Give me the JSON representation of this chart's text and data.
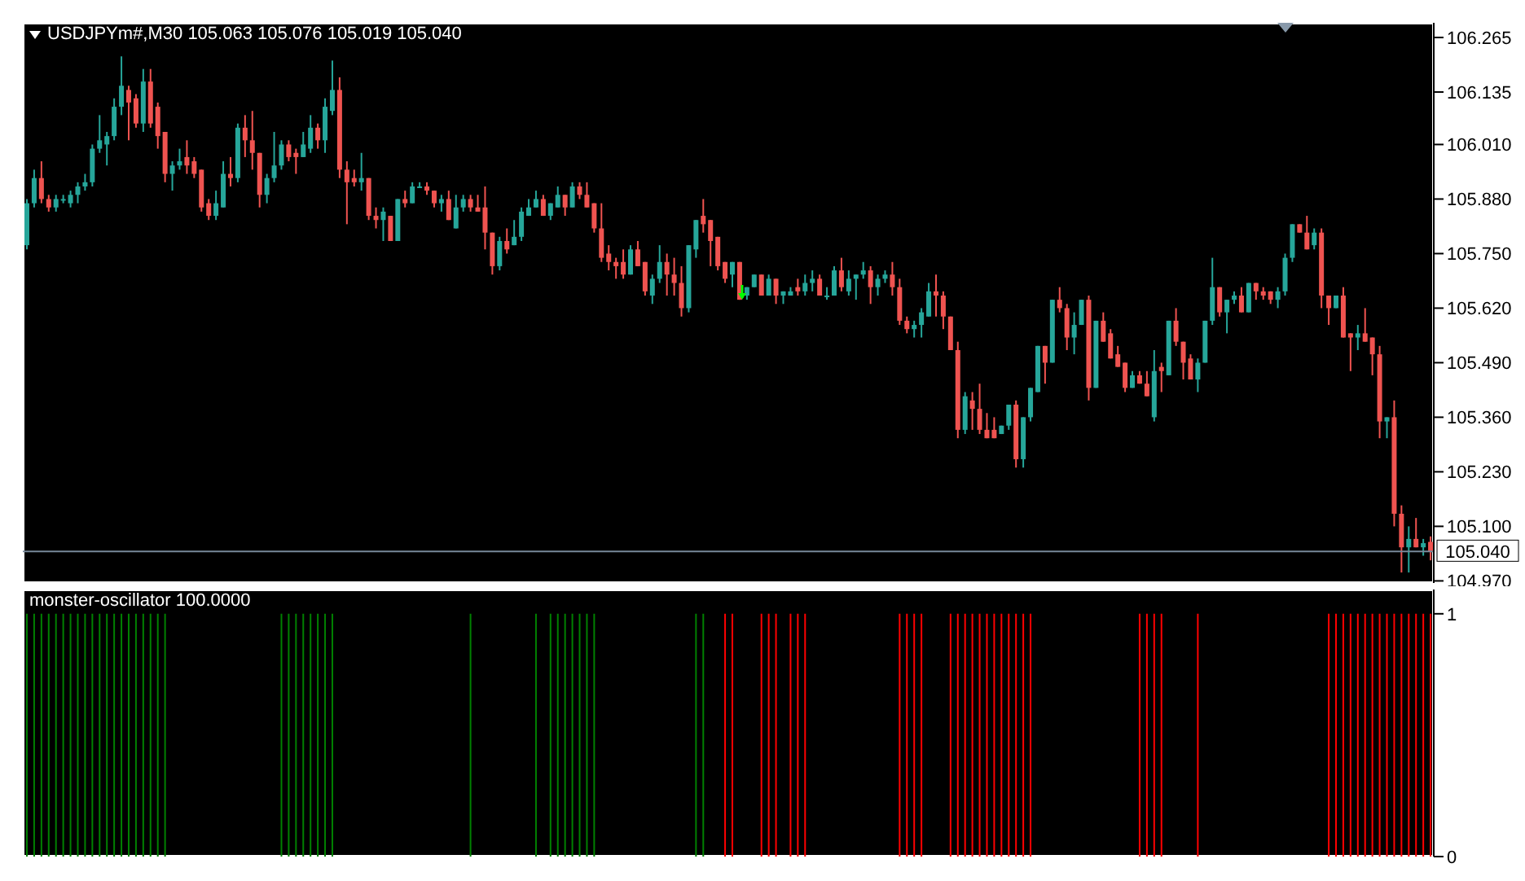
{
  "chart_data": [
    {
      "type": "candlestick",
      "title": "USDJPYm#,M30 105.063 105.076 105.019 105.040",
      "categories": [
        null,
        null,
        null,
        null,
        null,
        null,
        null,
        null,
        null,
        null,
        null,
        null,
        null,
        null,
        null,
        null,
        null,
        null,
        null,
        null,
        null,
        null,
        null,
        null,
        null,
        null,
        null,
        null,
        null,
        null,
        null,
        null,
        null,
        null,
        null,
        null,
        null,
        null,
        null,
        null,
        null,
        null,
        null,
        null,
        null,
        null,
        null,
        null,
        null,
        null,
        null,
        null,
        null,
        null,
        null,
        null,
        null,
        null,
        null,
        null,
        null,
        null,
        null,
        null,
        null,
        null,
        null,
        null,
        null,
        null,
        null,
        null,
        null,
        null,
        null,
        null,
        null,
        null,
        null,
        null,
        null,
        null,
        null,
        null,
        null,
        null,
        null,
        null,
        null,
        null,
        null,
        null,
        null,
        null,
        null,
        null,
        null,
        null,
        null,
        null,
        null,
        null,
        null,
        null,
        null,
        null,
        null,
        null,
        null,
        null,
        null,
        null,
        null,
        null,
        null,
        null,
        null,
        null,
        null,
        null,
        null,
        null,
        null,
        null,
        null,
        null,
        null,
        null,
        null,
        null,
        null,
        null,
        null,
        null,
        null,
        null,
        null,
        null,
        null,
        null,
        null,
        null,
        null,
        null,
        null,
        null,
        null,
        null,
        null,
        null,
        null,
        null,
        null,
        null,
        null,
        null,
        null,
        null,
        null,
        null,
        null,
        null,
        null,
        null,
        null,
        null,
        null,
        null,
        null,
        null,
        null,
        null,
        null,
        null,
        null,
        null,
        null,
        null,
        null,
        null,
        null,
        null,
        null,
        null,
        null,
        null,
        null,
        null,
        null,
        null,
        null,
        null,
        null,
        null
      ],
      "ohlc": [
        [
          105.77,
          105.88,
          105.76,
          105.87
        ],
        [
          105.87,
          105.95,
          105.86,
          105.93
        ],
        [
          105.93,
          105.97,
          105.87,
          105.88
        ],
        [
          105.88,
          105.89,
          105.85,
          105.86
        ],
        [
          105.86,
          105.89,
          105.85,
          105.88
        ],
        [
          105.88,
          105.89,
          105.87,
          105.88
        ],
        [
          105.87,
          105.9,
          105.86,
          105.89
        ],
        [
          105.89,
          105.92,
          105.87,
          105.91
        ],
        [
          105.91,
          105.94,
          105.9,
          105.92
        ],
        [
          105.92,
          106.01,
          105.91,
          106.0
        ],
        [
          106.0,
          106.08,
          105.99,
          106.02
        ],
        [
          106.01,
          106.04,
          105.96,
          106.03
        ],
        [
          106.03,
          106.12,
          106.02,
          106.1
        ],
        [
          106.1,
          106.22,
          106.08,
          106.15
        ],
        [
          106.14,
          106.15,
          106.02,
          106.11
        ],
        [
          106.12,
          106.13,
          106.05,
          106.06
        ],
        [
          106.06,
          106.19,
          106.04,
          106.16
        ],
        [
          106.16,
          106.19,
          106.05,
          106.06
        ],
        [
          106.1,
          106.11,
          106.0,
          106.03
        ],
        [
          106.04,
          106.04,
          105.92,
          105.94
        ],
        [
          105.94,
          105.97,
          105.9,
          105.96
        ],
        [
          105.96,
          106.0,
          105.95,
          105.97
        ],
        [
          105.98,
          106.02,
          105.94,
          105.96
        ],
        [
          105.97,
          105.98,
          105.93,
          105.94
        ],
        [
          105.95,
          105.95,
          105.85,
          105.86
        ],
        [
          105.87,
          105.88,
          105.83,
          105.84
        ],
        [
          105.84,
          105.9,
          105.83,
          105.87
        ],
        [
          105.86,
          105.97,
          105.86,
          105.94
        ],
        [
          105.94,
          105.98,
          105.91,
          105.93
        ],
        [
          105.93,
          106.06,
          105.92,
          106.05
        ],
        [
          106.05,
          106.08,
          105.98,
          106.02
        ],
        [
          106.02,
          106.09,
          105.95,
          105.99
        ],
        [
          105.99,
          105.99,
          105.86,
          105.89
        ],
        [
          105.89,
          105.94,
          105.87,
          105.93
        ],
        [
          105.93,
          106.04,
          105.92,
          105.96
        ],
        [
          105.96,
          106.02,
          105.95,
          106.01
        ],
        [
          106.01,
          106.02,
          105.97,
          105.98
        ],
        [
          105.99,
          106.0,
          105.94,
          105.98
        ],
        [
          105.98,
          106.04,
          105.98,
          106.01
        ],
        [
          106.0,
          106.08,
          105.99,
          106.05
        ],
        [
          106.05,
          106.06,
          106.0,
          106.02
        ],
        [
          106.02,
          106.12,
          105.99,
          106.1
        ],
        [
          106.09,
          106.21,
          106.08,
          106.14
        ],
        [
          106.14,
          106.17,
          105.93,
          105.95
        ],
        [
          105.95,
          105.97,
          105.82,
          105.92
        ],
        [
          105.93,
          105.95,
          105.91,
          105.92
        ],
        [
          105.92,
          105.99,
          105.9,
          105.93
        ],
        [
          105.93,
          105.93,
          105.83,
          105.84
        ],
        [
          105.84,
          105.86,
          105.81,
          105.83
        ],
        [
          105.83,
          105.86,
          105.78,
          105.85
        ],
        [
          105.84,
          105.84,
          105.78,
          105.78
        ],
        [
          105.78,
          105.88,
          105.78,
          105.88
        ],
        [
          105.88,
          105.9,
          105.86,
          105.87
        ],
        [
          105.87,
          105.92,
          105.87,
          105.91
        ],
        [
          105.91,
          105.92,
          105.91,
          105.91
        ],
        [
          105.91,
          105.92,
          105.89,
          105.9
        ],
        [
          105.9,
          105.9,
          105.86,
          105.87
        ],
        [
          105.87,
          105.89,
          105.85,
          105.88
        ],
        [
          105.88,
          105.9,
          105.83,
          105.83
        ],
        [
          105.81,
          105.89,
          105.81,
          105.86
        ],
        [
          105.86,
          105.89,
          105.85,
          105.88
        ],
        [
          105.88,
          105.89,
          105.85,
          105.86
        ],
        [
          105.86,
          105.89,
          105.85,
          105.85
        ],
        [
          105.86,
          105.91,
          105.76,
          105.8
        ],
        [
          105.8,
          105.8,
          105.7,
          105.72
        ],
        [
          105.72,
          105.79,
          105.71,
          105.78
        ],
        [
          105.78,
          105.81,
          105.75,
          105.76
        ],
        [
          105.77,
          105.83,
          105.77,
          105.79
        ],
        [
          105.79,
          105.86,
          105.78,
          105.85
        ],
        [
          105.84,
          105.88,
          105.84,
          105.86
        ],
        [
          105.86,
          105.9,
          105.86,
          105.88
        ],
        [
          105.88,
          105.89,
          105.84,
          105.84
        ],
        [
          105.84,
          105.87,
          105.83,
          105.87
        ],
        [
          105.86,
          105.91,
          105.86,
          105.89
        ],
        [
          105.89,
          105.89,
          105.84,
          105.86
        ],
        [
          105.86,
          105.92,
          105.86,
          105.91
        ],
        [
          105.91,
          105.92,
          105.88,
          105.89
        ],
        [
          105.89,
          105.92,
          105.86,
          105.86
        ],
        [
          105.87,
          105.87,
          105.8,
          105.81
        ],
        [
          105.81,
          105.87,
          105.73,
          105.74
        ],
        [
          105.75,
          105.77,
          105.71,
          105.73
        ],
        [
          105.73,
          105.74,
          105.69,
          105.72
        ],
        [
          105.73,
          105.76,
          105.69,
          105.7
        ],
        [
          105.7,
          105.77,
          105.7,
          105.76
        ],
        [
          105.76,
          105.78,
          105.72,
          105.72
        ],
        [
          105.73,
          105.73,
          105.65,
          105.66
        ],
        [
          105.65,
          105.7,
          105.63,
          105.69
        ],
        [
          105.69,
          105.77,
          105.68,
          105.73
        ],
        [
          105.73,
          105.75,
          105.65,
          105.7
        ],
        [
          105.7,
          105.74,
          105.65,
          105.68
        ],
        [
          105.68,
          105.72,
          105.6,
          105.62
        ],
        [
          105.62,
          105.77,
          105.61,
          105.77
        ],
        [
          105.76,
          105.83,
          105.74,
          105.83
        ],
        [
          105.84,
          105.88,
          105.8,
          105.82
        ],
        [
          105.83,
          105.83,
          105.72,
          105.78
        ],
        [
          105.79,
          105.79,
          105.71,
          105.72
        ],
        [
          105.73,
          105.73,
          105.68,
          105.69
        ],
        [
          105.7,
          105.73,
          105.67,
          105.73
        ],
        [
          105.73,
          105.73,
          105.64,
          105.64
        ],
        [
          105.65,
          105.67,
          105.64,
          105.67
        ],
        [
          105.67,
          105.7,
          105.67,
          105.7
        ],
        [
          105.7,
          105.7,
          105.65,
          105.65
        ],
        [
          105.65,
          105.7,
          105.65,
          105.69
        ],
        [
          105.69,
          105.69,
          105.63,
          105.65
        ],
        [
          105.65,
          105.66,
          105.63,
          105.66
        ],
        [
          105.65,
          105.67,
          105.65,
          105.66
        ],
        [
          105.67,
          105.69,
          105.65,
          105.66
        ],
        [
          105.66,
          105.7,
          105.65,
          105.68
        ],
        [
          105.68,
          105.71,
          105.66,
          105.69
        ],
        [
          105.69,
          105.7,
          105.65,
          105.65
        ],
        [
          105.65,
          105.67,
          105.64,
          105.65
        ],
        [
          105.65,
          105.72,
          105.65,
          105.71
        ],
        [
          105.71,
          105.74,
          105.66,
          105.67
        ],
        [
          105.66,
          105.71,
          105.65,
          105.69
        ],
        [
          105.69,
          105.7,
          105.64,
          105.7
        ],
        [
          105.7,
          105.73,
          105.69,
          105.71
        ],
        [
          105.71,
          105.72,
          105.63,
          105.67
        ],
        [
          105.67,
          105.7,
          105.65,
          105.69
        ],
        [
          105.69,
          105.71,
          105.68,
          105.7
        ],
        [
          105.7,
          105.73,
          105.65,
          105.67
        ],
        [
          105.67,
          105.69,
          105.58,
          105.59
        ],
        [
          105.59,
          105.6,
          105.56,
          105.57
        ],
        [
          105.57,
          105.59,
          105.55,
          105.58
        ],
        [
          105.58,
          105.62,
          105.55,
          105.61
        ],
        [
          105.6,
          105.68,
          105.6,
          105.66
        ],
        [
          105.66,
          105.7,
          105.6,
          105.65
        ],
        [
          105.65,
          105.66,
          105.57,
          105.6
        ],
        [
          105.6,
          105.6,
          105.52,
          105.52
        ],
        [
          105.52,
          105.54,
          105.31,
          105.33
        ],
        [
          105.33,
          105.42,
          105.32,
          105.41
        ],
        [
          105.4,
          105.42,
          105.33,
          105.38
        ],
        [
          105.38,
          105.44,
          105.32,
          105.33
        ],
        [
          105.33,
          105.37,
          105.31,
          105.31
        ],
        [
          105.33,
          105.36,
          105.31,
          105.31
        ],
        [
          105.32,
          105.34,
          105.32,
          105.34
        ],
        [
          105.34,
          105.39,
          105.33,
          105.39
        ],
        [
          105.39,
          105.4,
          105.24,
          105.26
        ],
        [
          105.26,
          105.36,
          105.24,
          105.36
        ],
        [
          105.36,
          105.43,
          105.35,
          105.43
        ],
        [
          105.42,
          105.53,
          105.42,
          105.53
        ],
        [
          105.53,
          105.53,
          105.44,
          105.49
        ],
        [
          105.49,
          105.64,
          105.49,
          105.64
        ],
        [
          105.64,
          105.67,
          105.61,
          105.62
        ],
        [
          105.62,
          105.63,
          105.52,
          105.55
        ],
        [
          105.55,
          105.61,
          105.51,
          105.58
        ],
        [
          105.58,
          105.64,
          105.58,
          105.64
        ],
        [
          105.64,
          105.65,
          105.4,
          105.43
        ],
        [
          105.43,
          105.59,
          105.43,
          105.59
        ],
        [
          105.59,
          105.61,
          105.54,
          105.54
        ],
        [
          105.56,
          105.57,
          105.5,
          105.5
        ],
        [
          105.51,
          105.53,
          105.48,
          105.48
        ],
        [
          105.49,
          105.49,
          105.42,
          105.43
        ],
        [
          105.43,
          105.47,
          105.43,
          105.46
        ],
        [
          105.46,
          105.47,
          105.44,
          105.44
        ],
        [
          105.44,
          105.47,
          105.41,
          105.41
        ],
        [
          105.36,
          105.52,
          105.35,
          105.47
        ],
        [
          105.48,
          105.49,
          105.42,
          105.47
        ],
        [
          105.46,
          105.59,
          105.46,
          105.59
        ],
        [
          105.59,
          105.62,
          105.53,
          105.54
        ],
        [
          105.54,
          105.54,
          105.45,
          105.49
        ],
        [
          105.5,
          105.51,
          105.45,
          105.45
        ],
        [
          105.45,
          105.5,
          105.42,
          105.49
        ],
        [
          105.49,
          105.59,
          105.49,
          105.59
        ],
        [
          105.59,
          105.74,
          105.58,
          105.67
        ],
        [
          105.67,
          105.67,
          105.6,
          105.61
        ],
        [
          105.61,
          105.64,
          105.56,
          105.64
        ],
        [
          105.64,
          105.66,
          105.63,
          105.65
        ],
        [
          105.65,
          105.67,
          105.61,
          105.61
        ],
        [
          105.61,
          105.68,
          105.61,
          105.68
        ],
        [
          105.68,
          105.68,
          105.64,
          105.66
        ],
        [
          105.66,
          105.67,
          105.64,
          105.65
        ],
        [
          105.66,
          105.66,
          105.63,
          105.64
        ],
        [
          105.64,
          105.67,
          105.62,
          105.66
        ],
        [
          105.66,
          105.75,
          105.65,
          105.74
        ],
        [
          105.74,
          105.82,
          105.73,
          105.82
        ],
        [
          105.82,
          105.82,
          105.8,
          105.8
        ],
        [
          105.8,
          105.84,
          105.76,
          105.76
        ],
        [
          105.77,
          105.81,
          105.76,
          105.8
        ],
        [
          105.8,
          105.81,
          105.62,
          105.65
        ],
        [
          105.65,
          105.65,
          105.58,
          105.62
        ],
        [
          105.62,
          105.65,
          105.62,
          105.65
        ],
        [
          105.65,
          105.67,
          105.55,
          105.55
        ],
        [
          105.56,
          105.56,
          105.47,
          105.55
        ],
        [
          105.55,
          105.58,
          105.52,
          105.56
        ],
        [
          105.56,
          105.62,
          105.54,
          105.54
        ],
        [
          105.55,
          105.55,
          105.46,
          105.51
        ],
        [
          105.51,
          105.53,
          105.31,
          105.35
        ],
        [
          105.35,
          105.36,
          105.31,
          105.36
        ],
        [
          105.36,
          105.4,
          105.1,
          105.13
        ],
        [
          105.13,
          105.15,
          104.99,
          105.05
        ],
        [
          105.05,
          105.1,
          104.99,
          105.07
        ],
        [
          105.07,
          105.12,
          105.05,
          105.05
        ],
        [
          105.05,
          105.07,
          105.03,
          105.06
        ],
        [
          105.063,
          105.076,
          105.019,
          105.04
        ]
      ],
      "ylim": [
        104.965,
        106.3
      ],
      "yticks": [
        106.265,
        106.135,
        {
          "value": 106.01,
          "label": "106.010"
        },
        {
          "value": 105.88,
          "label": "105.880"
        },
        {
          "value": 105.75,
          "label": "105.750"
        },
        {
          "value": 105.62,
          "label": "105.620"
        },
        {
          "value": 105.49,
          "label": "105.490"
        },
        {
          "value": 105.36,
          "label": "105.360"
        },
        {
          "value": 105.23,
          "label": "105.230"
        },
        {
          "value": 105.1,
          "label": "105.100"
        },
        {
          "value": 104.97,
          "label": "104.970"
        }
      ],
      "ref_lines": [
        {
          "axis": "y",
          "value": 105.04,
          "label": "105.040",
          "color": "#778899"
        }
      ],
      "tick_labels": "y"
    },
    {
      "type": "bar",
      "title": "monster-oscillator 100.0000",
      "categories": [
        null,
        null,
        null,
        null,
        null,
        null,
        null,
        null,
        null,
        null,
        null,
        null,
        null,
        null,
        null,
        null,
        null,
        null,
        null,
        null,
        null,
        null,
        null,
        null,
        null,
        null,
        null,
        null,
        null,
        null,
        null,
        null,
        null,
        null,
        null,
        null,
        null,
        null,
        null,
        null,
        null,
        null,
        null,
        null,
        null,
        null,
        null,
        null,
        null,
        null,
        null,
        null,
        null,
        null,
        null,
        null,
        null,
        null,
        null,
        null,
        null,
        null,
        null,
        null,
        null,
        null,
        null,
        null,
        null,
        null,
        null,
        null,
        null,
        null,
        null,
        null,
        null,
        null,
        null,
        null,
        null,
        null,
        null,
        null,
        null,
        null,
        null,
        null,
        null,
        null,
        null,
        null,
        null,
        null,
        null,
        null,
        null,
        null,
        null,
        null,
        null,
        null,
        null,
        null,
        null,
        null,
        null,
        null,
        null,
        null,
        null,
        null,
        null,
        null,
        null,
        null,
        null,
        null,
        null,
        null,
        null,
        null,
        null,
        null,
        null,
        null,
        null,
        null,
        null,
        null,
        null,
        null,
        null,
        null,
        null,
        null,
        null,
        null,
        null,
        null,
        null,
        null,
        null,
        null,
        null,
        null,
        null,
        null,
        null,
        null,
        null,
        null,
        null,
        null,
        null,
        null,
        null,
        null,
        null,
        null,
        null,
        null,
        null,
        null,
        null,
        null,
        null,
        null,
        null,
        null,
        null,
        null,
        null,
        null,
        null,
        null,
        null,
        null,
        null,
        null,
        null,
        null,
        null,
        null,
        null,
        null,
        null,
        null,
        null,
        null,
        null,
        null,
        null,
        null
      ],
      "series": [
        {
          "color": "#008000",
          "values": [
            1,
            1,
            1,
            1,
            1,
            1,
            1,
            1,
            1,
            1,
            1,
            1,
            1,
            1,
            1,
            1,
            1,
            1,
            1,
            1,
            null,
            null,
            null,
            null,
            null,
            null,
            null,
            null,
            null,
            null,
            null,
            null,
            null,
            null,
            null,
            1,
            1,
            1,
            1,
            1,
            1,
            1,
            1,
            null,
            null,
            null,
            null,
            null,
            null,
            null,
            null,
            null,
            null,
            null,
            null,
            null,
            null,
            null,
            null,
            null,
            null,
            1,
            null,
            null,
            null,
            null,
            null,
            null,
            null,
            null,
            1,
            null,
            1,
            1,
            1,
            1,
            1,
            1,
            1,
            null,
            null,
            null,
            null,
            null,
            null,
            null,
            null,
            null,
            null,
            null,
            null,
            null,
            1,
            1,
            null,
            null,
            null,
            null,
            null,
            null,
            null,
            null,
            null,
            null,
            null,
            null,
            null,
            null,
            null,
            null,
            null,
            null,
            null,
            null,
            null,
            null,
            null,
            null,
            null,
            null,
            null,
            null,
            null,
            null,
            null,
            null,
            null,
            null,
            null,
            null,
            null,
            null,
            null,
            null,
            null,
            null,
            null,
            null,
            null,
            null,
            null,
            null,
            null,
            null,
            null,
            null,
            null,
            null,
            null,
            null,
            null,
            null,
            null,
            null,
            null,
            null,
            null,
            null,
            null,
            null,
            null,
            null,
            null,
            null,
            null,
            null,
            null,
            null,
            null,
            null,
            null,
            null,
            null,
            null,
            null,
            null,
            null,
            null,
            null,
            null,
            null,
            null,
            null,
            null,
            null,
            null,
            null,
            null,
            null,
            null,
            null,
            null,
            null,
            null
          ]
        },
        {
          "color": "#ff0000",
          "values": [
            null,
            null,
            null,
            null,
            null,
            null,
            null,
            null,
            null,
            null,
            null,
            null,
            null,
            null,
            null,
            null,
            null,
            null,
            null,
            null,
            null,
            null,
            null,
            null,
            null,
            null,
            null,
            null,
            null,
            null,
            null,
            null,
            null,
            null,
            null,
            null,
            null,
            null,
            null,
            null,
            null,
            null,
            null,
            null,
            null,
            null,
            null,
            null,
            null,
            null,
            null,
            null,
            null,
            null,
            null,
            null,
            null,
            null,
            null,
            null,
            null,
            null,
            null,
            null,
            null,
            null,
            null,
            null,
            null,
            null,
            null,
            null,
            null,
            null,
            null,
            null,
            null,
            null,
            null,
            null,
            null,
            null,
            null,
            null,
            null,
            null,
            null,
            null,
            null,
            null,
            null,
            null,
            null,
            null,
            null,
            null,
            1,
            1,
            null,
            null,
            null,
            1,
            1,
            1,
            null,
            1,
            1,
            1,
            null,
            null,
            null,
            null,
            null,
            null,
            null,
            null,
            null,
            null,
            null,
            null,
            1,
            1,
            1,
            1,
            null,
            null,
            null,
            1,
            1,
            1,
            1,
            1,
            1,
            1,
            1,
            1,
            1,
            1,
            1,
            null,
            null,
            null,
            null,
            null,
            null,
            null,
            null,
            null,
            null,
            null,
            null,
            null,
            null,
            1,
            1,
            1,
            1,
            null,
            null,
            null,
            null,
            1,
            null,
            null,
            null,
            null,
            null,
            null,
            null,
            null,
            null,
            null,
            null,
            null,
            null,
            null,
            null,
            null,
            null,
            1,
            1,
            1,
            1,
            1,
            1,
            1,
            1,
            1,
            1,
            1,
            1,
            1,
            1,
            1
          ]
        }
      ],
      "ylim": [
        0,
        1.1
      ],
      "yticks": [
        0,
        1
      ],
      "tick_labels": "y"
    }
  ]
}
